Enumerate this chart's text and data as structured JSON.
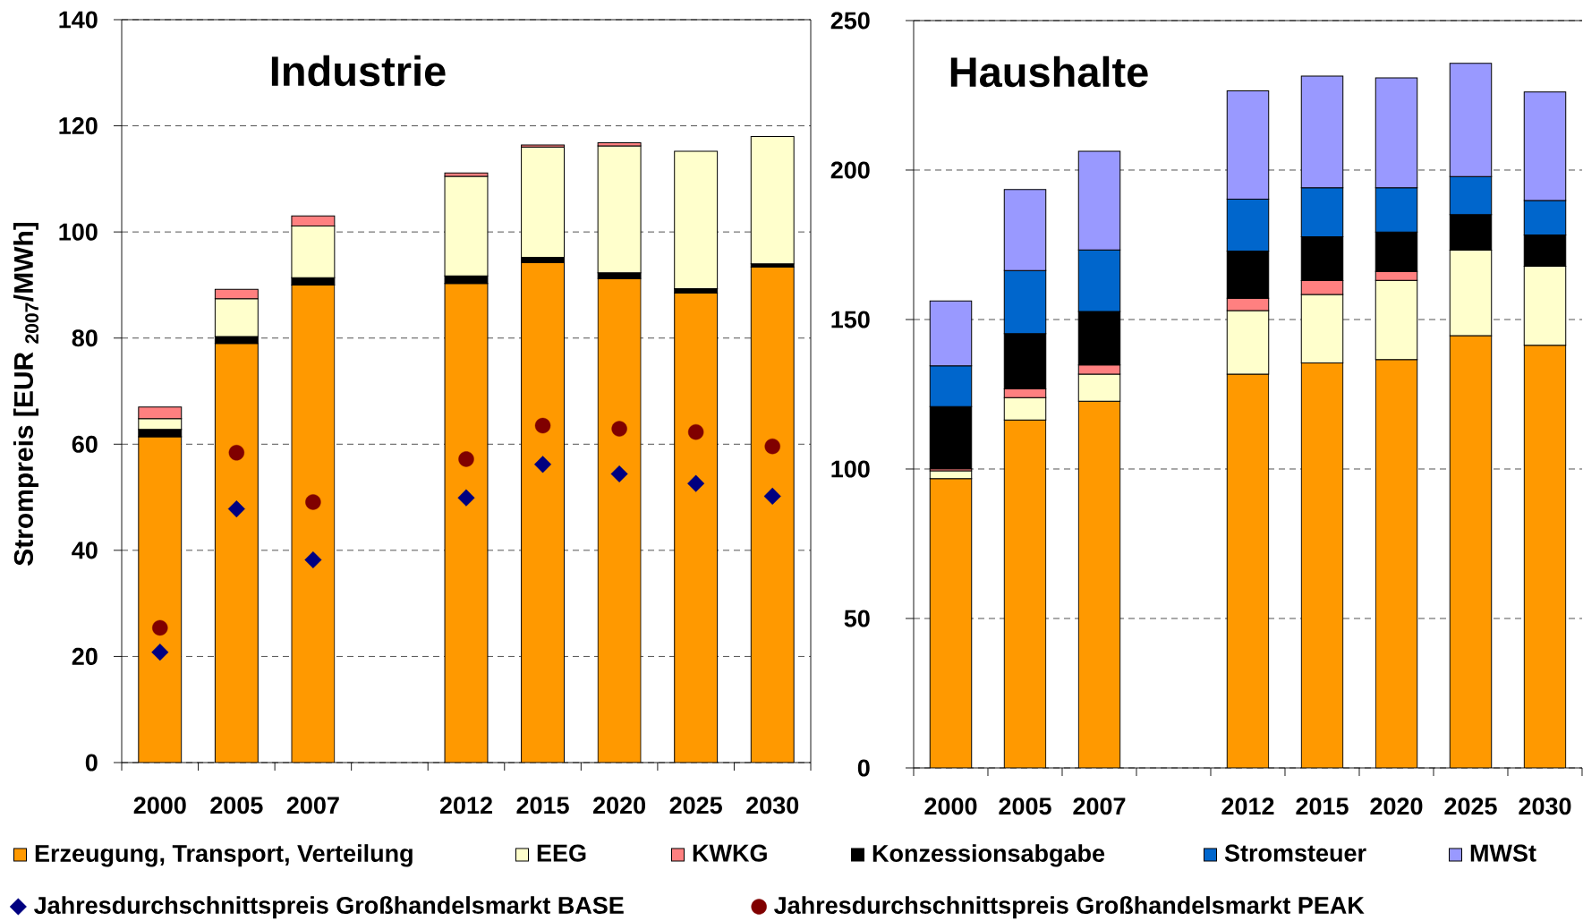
{
  "chart_data": [
    {
      "type": "bar",
      "title": "Industrie",
      "ylabel": "Strompreis [EUR $_{2007}$/MWh]",
      "stacked": true,
      "categories": [
        "2000",
        "2005",
        "2007",
        null,
        "2012",
        "2015",
        "2020",
        "2025",
        "2030"
      ],
      "ylim": [
        0,
        140
      ],
      "yticks": [
        0,
        20,
        40,
        60,
        80,
        100,
        120,
        140
      ],
      "grid": "y",
      "legend": "bottom",
      "series": [
        {
          "color": "#ff9900",
          "values": [
            61.4,
            79.0,
            90.0,
            null,
            90.3,
            94.2,
            91.2,
            88.5,
            93.4
          ]
        },
        {
          "color": "#000000",
          "values": [
            1.4,
            1.3,
            1.4,
            null,
            1.4,
            1.0,
            1.1,
            0.8,
            0.6
          ]
        },
        {
          "color": "#ffffcc",
          "values": [
            2.0,
            7.1,
            9.7,
            null,
            18.8,
            20.8,
            23.9,
            25.9,
            24.0
          ]
        },
        {
          "color": "#ff8080",
          "values": [
            2.2,
            1.8,
            1.9,
            null,
            0.6,
            0.4,
            0.6,
            null,
            null
          ]
        },
        {
          "name": "Jahresdurchschnittspreis Großhandelsmarkt BASE",
          "type": "scatter",
          "marker": "diamond",
          "color": "#000080",
          "values": [
            20.8,
            47.8,
            38.2,
            null,
            49.9,
            56.2,
            54.4,
            52.6,
            50.2
          ]
        },
        {
          "name": "Jahresdurchschnittspreis Großhandelsmarkt PEAK",
          "type": "scatter",
          "marker": "circle",
          "color": "#800000",
          "values": [
            25.4,
            58.4,
            49.1,
            null,
            57.2,
            63.5,
            62.9,
            62.3,
            59.6
          ]
        }
      ]
    },
    {
      "type": "bar",
      "title": "Haushalte",
      "stacked": true,
      "categories": [
        "2000",
        "2005",
        "2007",
        null,
        "2012",
        "2015",
        "2020",
        "2025",
        "2030"
      ],
      "ylim": [
        0,
        250
      ],
      "yticks": [
        0,
        50,
        100,
        150,
        200,
        250
      ],
      "grid": "y",
      "legend": "bottom",
      "series": [
        {
          "name": "Erzeugung, Transport, Verteilung",
          "color": "#ff9900",
          "values": [
            96.8,
            116.4,
            122.7,
            null,
            131.7,
            135.5,
            136.6,
            144.6,
            141.4
          ]
        },
        {
          "name": "EEG",
          "color": "#ffffcc",
          "values": [
            2.6,
            7.5,
            9.0,
            null,
            21.3,
            22.9,
            26.5,
            28.6,
            26.4
          ]
        },
        {
          "name": "KWKG",
          "color": "#ff8080",
          "values": [
            0.7,
            2.9,
            3.1,
            null,
            4.1,
            4.6,
            3.0,
            null,
            null
          ]
        },
        {
          "name": "Konzessionsabgabe",
          "color": "#000000",
          "values": [
            20.8,
            18.5,
            17.9,
            null,
            15.8,
            14.7,
            13.2,
            11.9,
            10.5
          ]
        },
        {
          "name": "Stromsteuer",
          "color": "#0066cc",
          "values": [
            13.6,
            21.1,
            20.6,
            null,
            17.4,
            16.4,
            14.8,
            12.7,
            11.5
          ]
        },
        {
          "name": "MWSt",
          "color": "#9999ff",
          "values": [
            21.7,
            27.1,
            33.0,
            null,
            36.2,
            37.3,
            36.7,
            37.9,
            36.3
          ]
        }
      ]
    }
  ]
}
